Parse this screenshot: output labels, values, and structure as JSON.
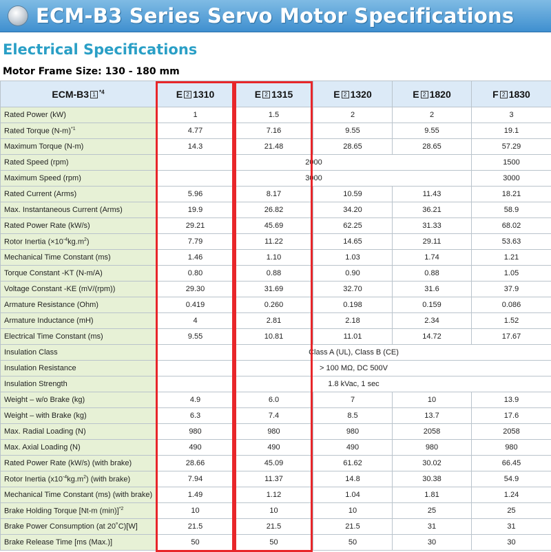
{
  "header": {
    "title": "ECM-B3 Series Servo Motor Specifications"
  },
  "section_title": "Electrical Specifications",
  "frame_size": "Motor Frame Size: 130 - 180 mm",
  "table": {
    "corner": {
      "prefix": "ECM-B3",
      "box": "1",
      "sup": "*4"
    },
    "columns": [
      {
        "pre": "E",
        "box": "2",
        "post": "1310"
      },
      {
        "pre": "E",
        "box": "2",
        "post": "1315"
      },
      {
        "pre": "E",
        "box": "2",
        "post": "1320"
      },
      {
        "pre": "E",
        "box": "2",
        "post": "1820"
      },
      {
        "pre": "F",
        "box": "2",
        "post": "1830"
      }
    ],
    "rows": [
      {
        "label": "Rated Power (kW)",
        "values": [
          "1",
          "1.5",
          "2",
          "2",
          "3"
        ]
      },
      {
        "label": "Rated Torque (N-m)",
        "sup": "*1",
        "values": [
          "4.77",
          "7.16",
          "9.55",
          "9.55",
          "19.1"
        ]
      },
      {
        "label": "Maximum Torque (N-m)",
        "values": [
          "14.3",
          "21.48",
          "28.65",
          "28.65",
          "57.29"
        ]
      },
      {
        "label": "Rated Speed (rpm)",
        "merged": "2000",
        "last": "1500"
      },
      {
        "label": "Maximum Speed (rpm)",
        "merged": "3000",
        "last": "3000"
      },
      {
        "label": "Rated Current (Arms)",
        "values": [
          "5.96",
          "8.17",
          "10.59",
          "11.43",
          "18.21"
        ]
      },
      {
        "label": "Max. Instantaneous Current (Arms)",
        "values": [
          "19.9",
          "26.82",
          "34.20",
          "36.21",
          "58.9"
        ]
      },
      {
        "label": "Rated Power Rate (kW/s)",
        "values": [
          "29.21",
          "45.69",
          "62.25",
          "31.33",
          "68.02"
        ]
      },
      {
        "label": "Rotor Inertia (×10",
        "sup": "-4",
        "label2": "kg.m",
        "sup2": "2",
        "label3": ")",
        "values": [
          "7.79",
          "11.22",
          "14.65",
          "29.11",
          "53.63"
        ]
      },
      {
        "label": "Mechanical Time Constant (ms)",
        "values": [
          "1.46",
          "1.10",
          "1.03",
          "1.74",
          "1.21"
        ]
      },
      {
        "label": "Torque Constant -KT (N-m/A)",
        "values": [
          "0.80",
          "0.88",
          "0.90",
          "0.88",
          "1.05"
        ]
      },
      {
        "label": "Voltage Constant -KE (mV/(rpm))",
        "values": [
          "29.30",
          "31.69",
          "32.70",
          "31.6",
          "37.9"
        ]
      },
      {
        "label": "Armature Resistance (Ohm)",
        "values": [
          "0.419",
          "0.260",
          "0.198",
          "0.159",
          "0.086"
        ]
      },
      {
        "label": "Armature Inductance (mH)",
        "values": [
          "4",
          "2.81",
          "2.18",
          "2.34",
          "1.52"
        ]
      },
      {
        "label": "Electrical Time Constant (ms)",
        "values": [
          "9.55",
          "10.81",
          "11.01",
          "14.72",
          "17.67"
        ]
      },
      {
        "label": "Insulation Class",
        "span_all": "Class A (UL), Class B (CE)"
      },
      {
        "label": "Insulation Resistance",
        "span_all": "> 100 MΩ, DC 500V"
      },
      {
        "label": "Insulation Strength",
        "span_all": "1.8 kVac, 1 sec"
      },
      {
        "label": "Weight – w/o Brake (kg)",
        "values": [
          "4.9",
          "6.0",
          "7",
          "10",
          "13.9"
        ]
      },
      {
        "label": "Weight – with Brake (kg)",
        "values": [
          "6.3",
          "7.4",
          "8.5",
          "13.7",
          "17.6"
        ]
      },
      {
        "label": "Max. Radial Loading (N)",
        "values": [
          "980",
          "980",
          "980",
          "2058",
          "2058"
        ]
      },
      {
        "label": "Max. Axial Loading (N)",
        "values": [
          "490",
          "490",
          "490",
          "980",
          "980"
        ]
      },
      {
        "label": "Rated Power Rate (kW/s) (with brake)",
        "values": [
          "28.66",
          "45.09",
          "61.62",
          "30.02",
          "66.45"
        ]
      },
      {
        "label": "Rotor Inertia (x10",
        "sup": "-4",
        "label2": "kg.m",
        "sup2": "2",
        "label3": ") (with brake)",
        "values": [
          "7.94",
          "11.37",
          "14.8",
          "30.38",
          "54.9"
        ]
      },
      {
        "label": "Mechanical Time Constant (ms) (with brake)",
        "values": [
          "1.49",
          "1.12",
          "1.04",
          "1.81",
          "1.24"
        ]
      },
      {
        "label": "Brake Holding Torque [Nt-m (min)]",
        "sup": "*2",
        "values": [
          "10",
          "10",
          "10",
          "25",
          "25"
        ]
      },
      {
        "label": "Brake Power Consumption (at 20˚C)[W]",
        "values": [
          "21.5",
          "21.5",
          "21.5",
          "31",
          "31"
        ]
      },
      {
        "label": "Brake Release Time [ms (Max.)]",
        "values": [
          "50",
          "50",
          "50",
          "30",
          "30"
        ]
      }
    ]
  },
  "colors": {
    "banner": "#3f8fcf",
    "section_title": "#2a9fc6",
    "label_bg": "#e7f1d6",
    "header_bg": "#dceaf7",
    "highlight": "#e8262a"
  }
}
